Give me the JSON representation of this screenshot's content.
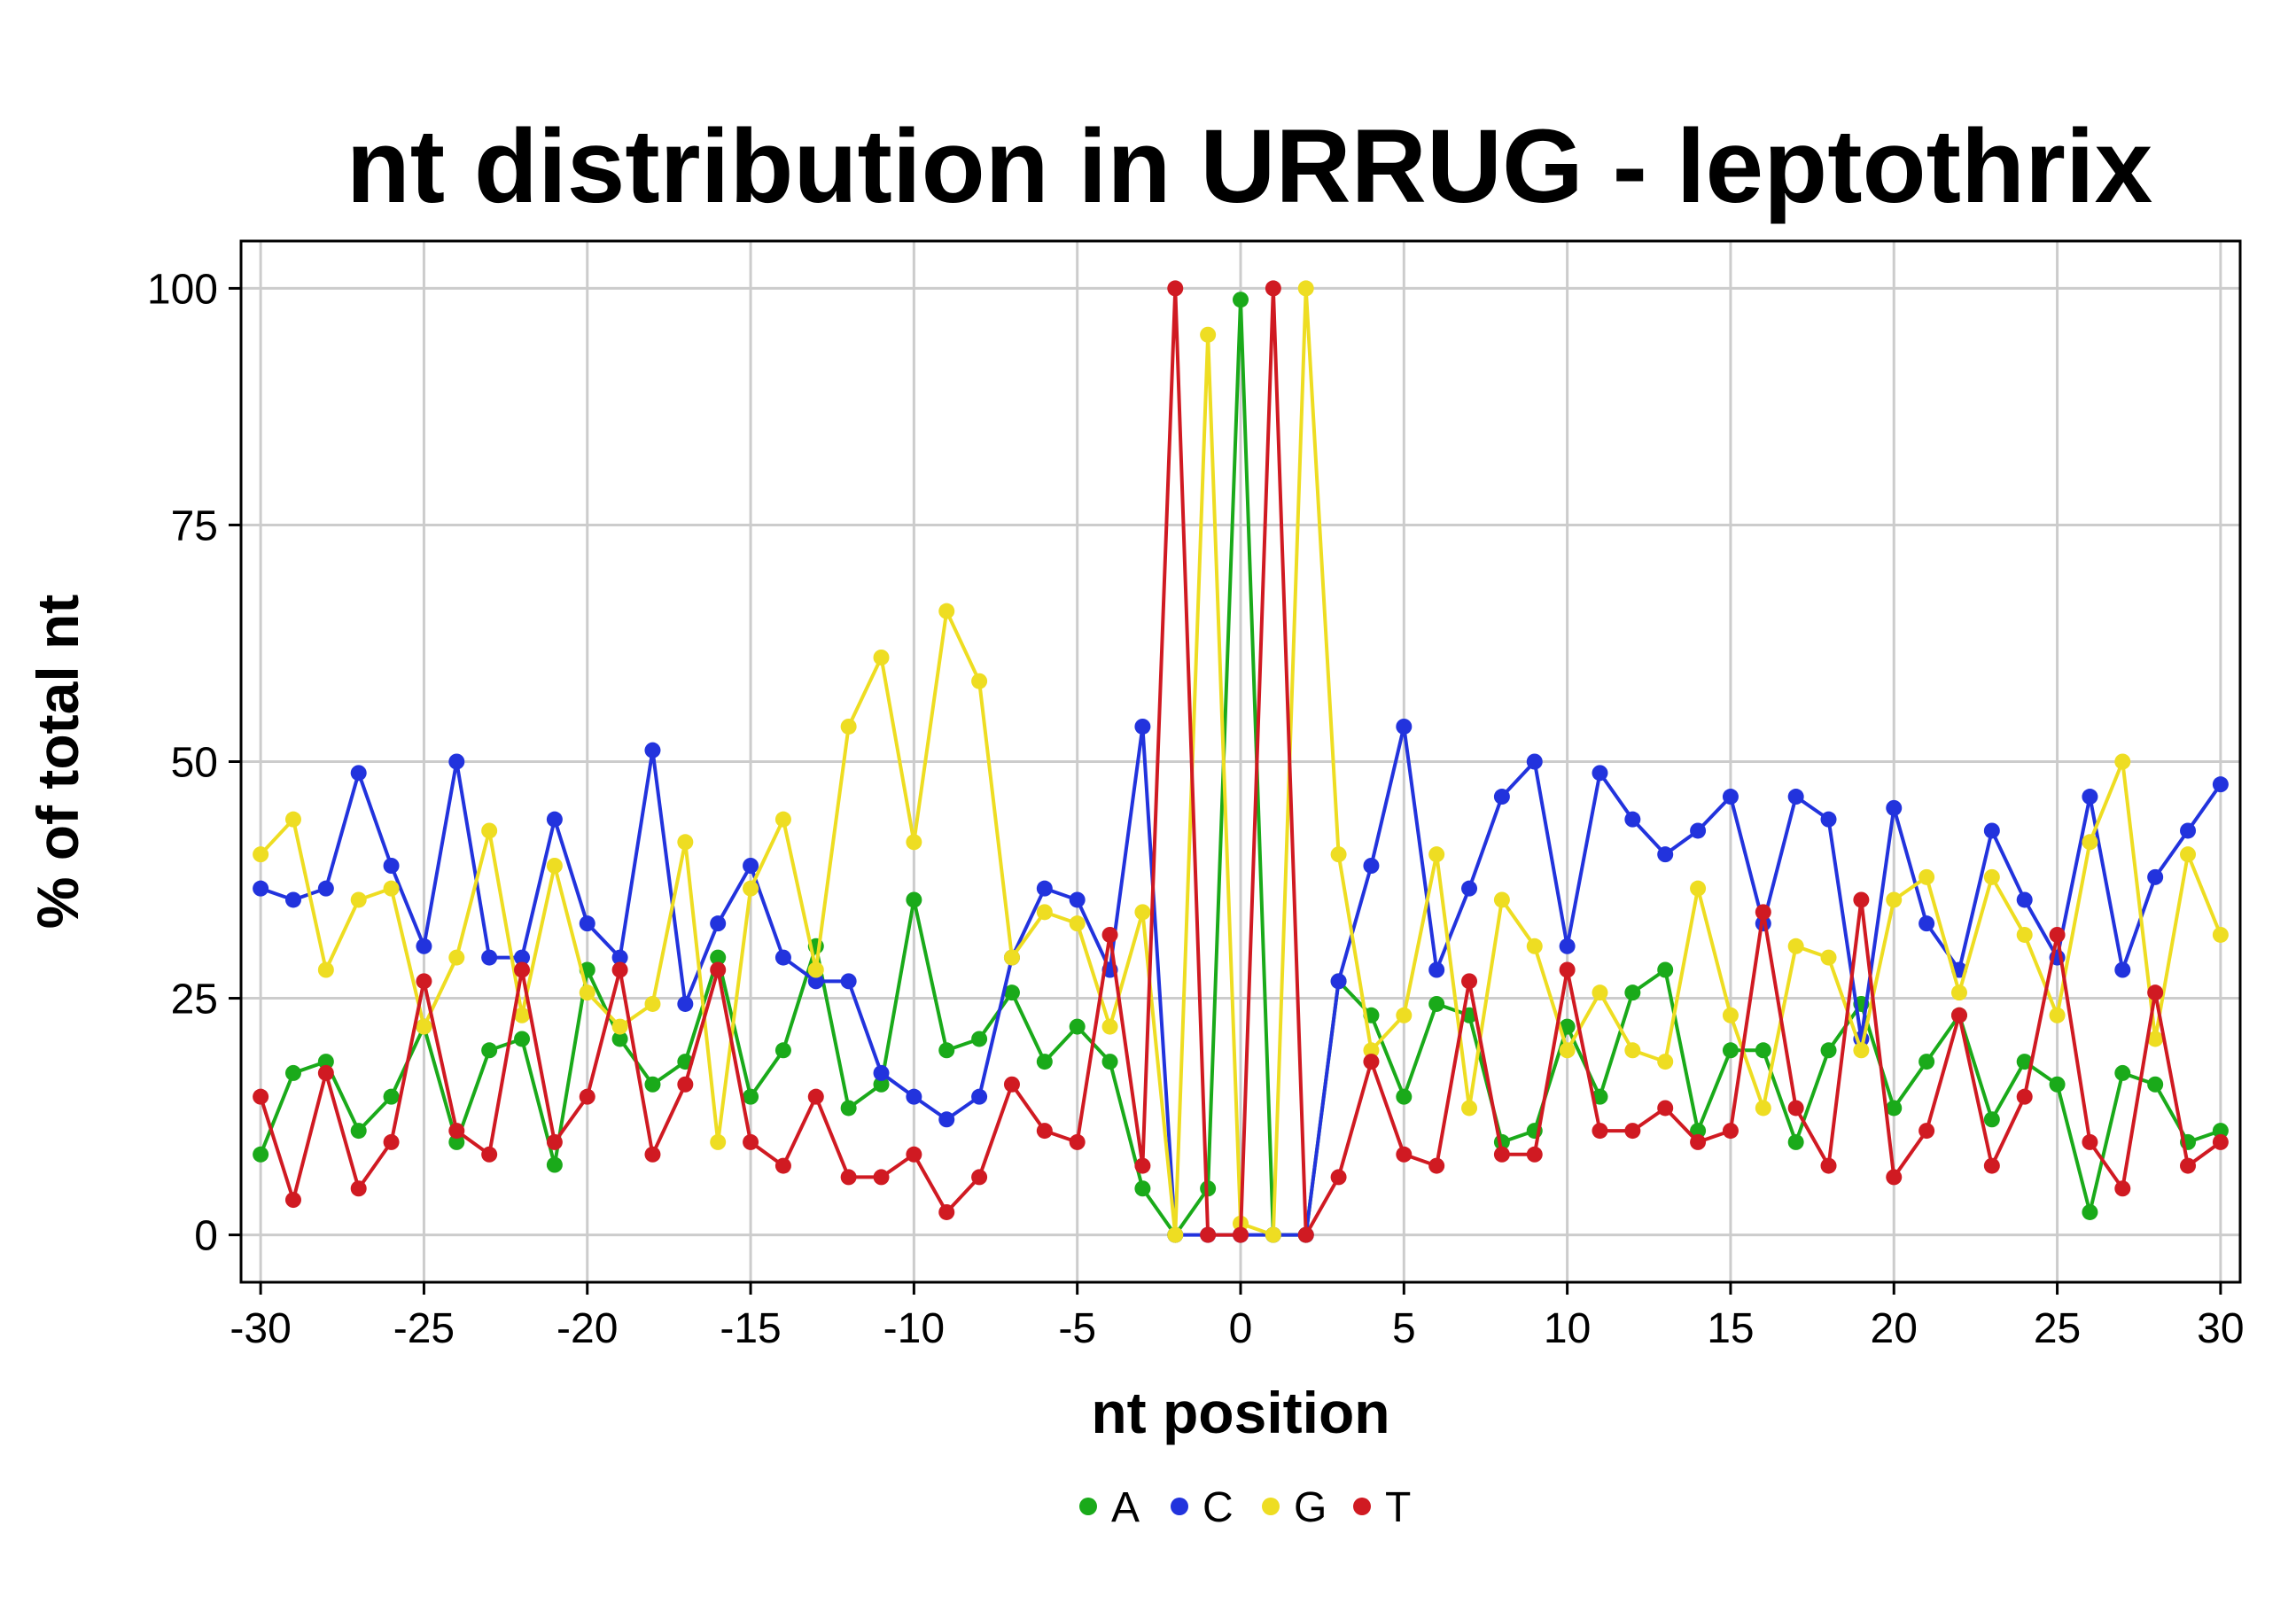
{
  "chart_data": {
    "type": "line",
    "title": "nt distribution in URRUG - leptothrix",
    "xlabel": "nt position",
    "ylabel": "% of total nt",
    "xlim": [
      -30,
      30
    ],
    "ylim": [
      0,
      100
    ],
    "xticks": [
      "-30",
      "-25",
      "-20",
      "-15",
      "-10",
      "-5",
      "0",
      "5",
      "10",
      "15",
      "20",
      "25",
      "30"
    ],
    "yticks": [
      "0",
      "25",
      "50",
      "75",
      "100"
    ],
    "grid": true,
    "legend_position": "bottom",
    "markers": true,
    "x": [
      -30,
      -29,
      -28,
      -27,
      -26,
      -25,
      -24,
      -23,
      -22,
      -21,
      -20,
      -19,
      -18,
      -17,
      -16,
      -15,
      -14,
      -13,
      -12,
      -11,
      -10,
      -9,
      -8,
      -7,
      -6,
      -5,
      -4,
      -3,
      -2,
      -1,
      0,
      1,
      2,
      3,
      4,
      5,
      6,
      7,
      8,
      9,
      10,
      11,
      12,
      13,
      14,
      15,
      16,
      17,
      18,
      19,
      20,
      21,
      22,
      23,
      24,
      25,
      26,
      27,
      28,
      29,
      30
    ],
    "series": [
      {
        "name": "A",
        "color": "#1aaa1a",
        "values": [
          8.5,
          17.1,
          18.3,
          11,
          14.6,
          22,
          9.8,
          19.5,
          20.7,
          7.4,
          28,
          20.7,
          15.9,
          18.3,
          29.3,
          14.6,
          19.5,
          30.5,
          13.4,
          15.9,
          35.4,
          19.5,
          20.7,
          25.6,
          18.3,
          22,
          18.3,
          4.9,
          0,
          4.9,
          98.8,
          0,
          0,
          26.8,
          23.2,
          14.6,
          24.4,
          23.2,
          9.8,
          11,
          22,
          14.6,
          25.6,
          28,
          11,
          19.5,
          19.5,
          9.8,
          19.5,
          24.4,
          13.4,
          18.3,
          23.2,
          12.2,
          18.3,
          15.9,
          2.4,
          17.1,
          15.9,
          9.8,
          11
        ]
      },
      {
        "name": "C",
        "color": "#2233dd",
        "values": [
          36.6,
          35.4,
          36.6,
          48.8,
          39,
          30.5,
          50,
          29.3,
          29.3,
          43.9,
          32.9,
          29.3,
          51.2,
          24.4,
          32.9,
          39,
          29.3,
          26.8,
          26.8,
          17.1,
          14.6,
          12.2,
          14.6,
          29.3,
          36.6,
          35.4,
          28,
          53.7,
          0,
          0,
          0,
          0,
          0,
          26.8,
          39,
          53.7,
          28,
          36.6,
          46.3,
          50,
          30.5,
          48.8,
          43.9,
          40.2,
          42.7,
          46.3,
          32.9,
          46.3,
          43.9,
          20.7,
          45.1,
          32.9,
          28,
          42.7,
          35.4,
          29.3,
          46.3,
          28,
          37.8,
          42.7,
          47.6
        ]
      },
      {
        "name": "G",
        "color": "#eedd22",
        "values": [
          40.2,
          43.9,
          28,
          35.4,
          36.6,
          22,
          29.3,
          42.7,
          23.2,
          39,
          25.6,
          22,
          24.4,
          41.5,
          9.8,
          36.6,
          43.9,
          28,
          53.7,
          61,
          41.5,
          65.9,
          58.5,
          29.3,
          34.1,
          32.9,
          22,
          34.1,
          0,
          95.1,
          1.2,
          0,
          100,
          40.2,
          19.5,
          23.2,
          40.2,
          13.4,
          35.4,
          30.5,
          19.5,
          25.6,
          19.5,
          18.3,
          36.6,
          23.2,
          13.4,
          30.5,
          29.3,
          19.5,
          35.4,
          37.8,
          25.6,
          37.8,
          31.7,
          23.2,
          41.5,
          50,
          20.7,
          40.2,
          31.7
        ]
      },
      {
        "name": "T",
        "color": "#d01a22",
        "values": [
          14.6,
          3.7,
          17.1,
          4.9,
          9.8,
          26.8,
          11,
          8.5,
          28,
          9.8,
          14.6,
          28,
          8.5,
          15.9,
          28,
          9.8,
          7.3,
          14.6,
          6.1,
          6.1,
          8.5,
          2.4,
          6.1,
          15.9,
          11,
          9.8,
          31.7,
          7.3,
          100,
          0,
          0,
          100,
          0,
          6.1,
          18.3,
          8.5,
          7.3,
          26.8,
          8.5,
          8.5,
          28,
          11,
          11,
          13.4,
          9.8,
          11,
          34.1,
          13.4,
          7.3,
          35.4,
          6.1,
          11,
          23.2,
          7.3,
          14.6,
          31.7,
          9.8,
          4.9,
          25.6,
          7.3,
          9.8
        ]
      }
    ]
  }
}
